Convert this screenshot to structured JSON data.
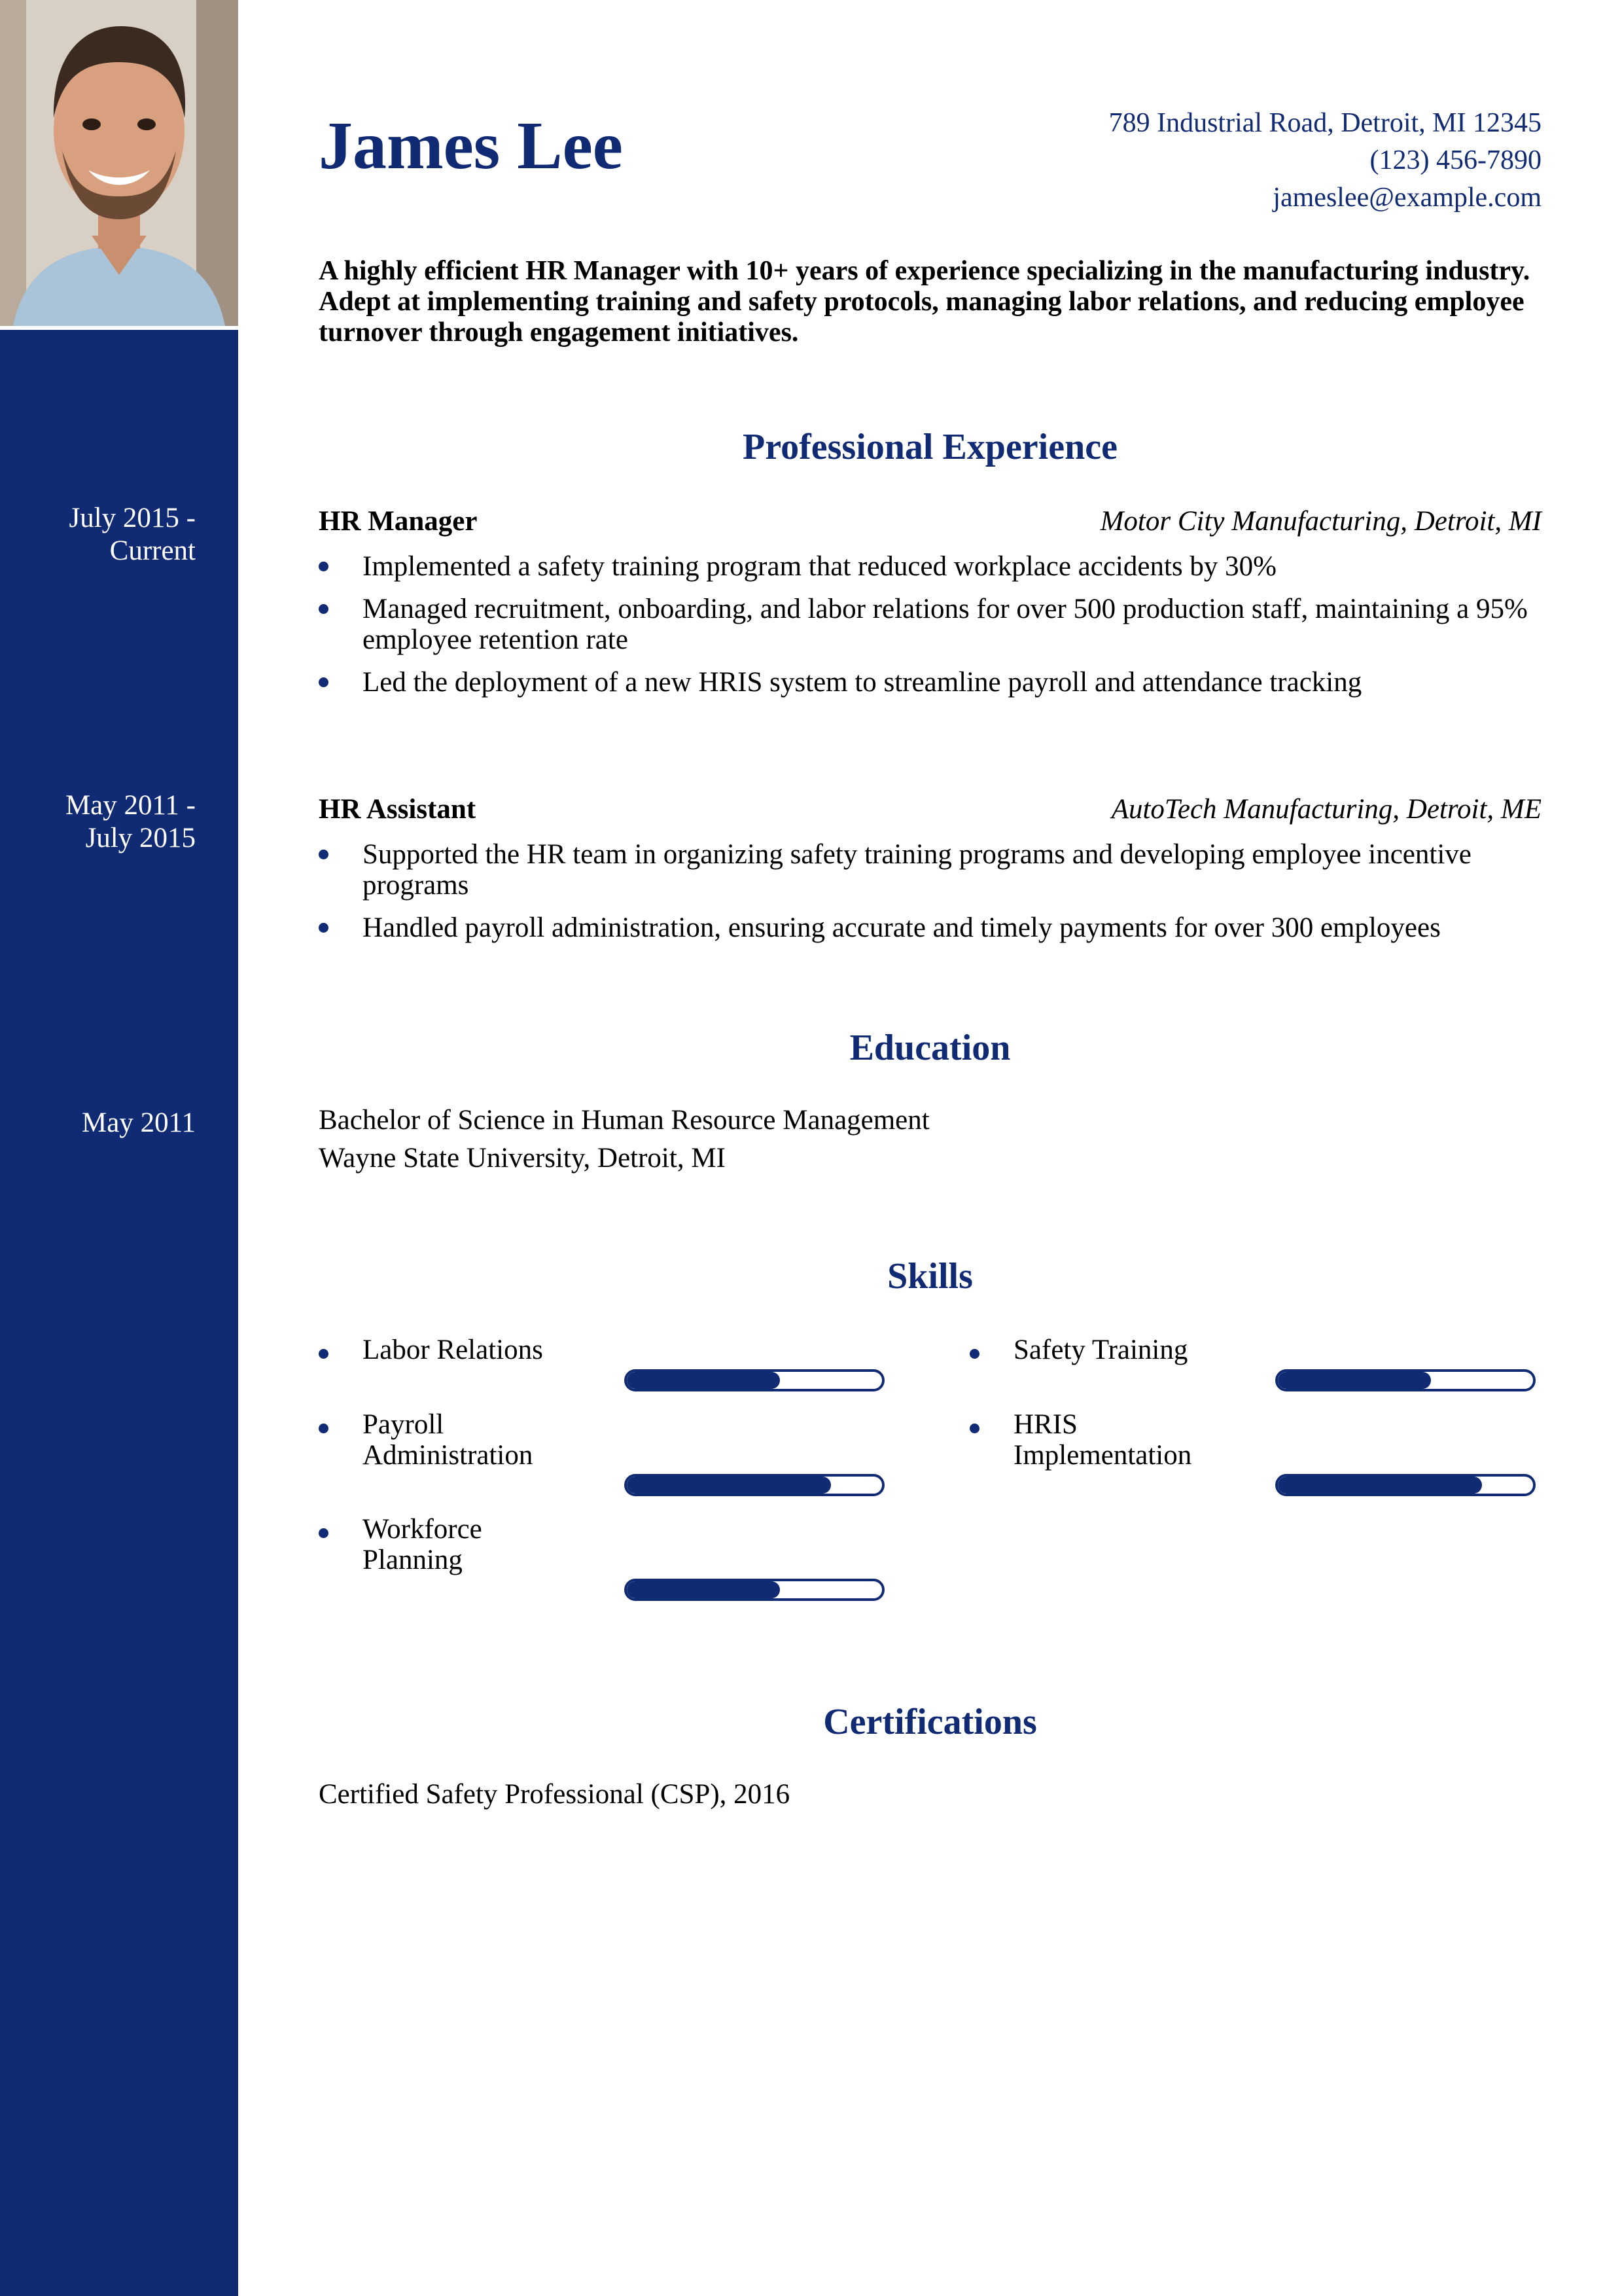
{
  "header": {
    "name": "James Lee",
    "address": "789 Industrial Road, Detroit, MI 12345",
    "phone": "(123) 456-7890",
    "email": "jameslee@example.com"
  },
  "summary": "A highly efficient HR Manager with 10+ years of experience specializing in the manufacturing industry. Adept at implementing training and safety protocols, managing labor relations, and reducing employee turnover through engagement initiatives.",
  "sections": {
    "experience": "Professional Experience",
    "education": "Education",
    "skills": "Skills",
    "certifications": "Certifications"
  },
  "experience": [
    {
      "dates_line1": "July 2015 -",
      "dates_line2": "Current",
      "title": "HR Manager",
      "company": "Motor City Manufacturing, Detroit, MI",
      "bullets": [
        "Implemented a safety training program that reduced workplace accidents by 30%",
        "Managed recruitment, onboarding, and labor relations for over 500 production staff, maintaining a 95% employee retention rate",
        "Led the deployment of a new HRIS system to streamline payroll and attendance tracking"
      ]
    },
    {
      "dates_line1": "May 2011 -",
      "dates_line2": "July 2015",
      "title": "HR Assistant",
      "company": "AutoTech Manufacturing, Detroit, ME",
      "bullets": [
        "Supported the HR team in organizing safety training programs and developing employee incentive programs",
        "Handled payroll administration, ensuring accurate and timely payments for over 300 employees"
      ]
    }
  ],
  "education": {
    "date": "May 2011",
    "degree": "Bachelor of Science in Human Resource Management",
    "school": "Wayne State University, Detroit, MI"
  },
  "skills": [
    {
      "line1": "Labor Relations",
      "line2": "",
      "level": 0.6
    },
    {
      "line1": "Safety Training",
      "line2": "",
      "level": 0.6
    },
    {
      "line1": "Payroll",
      "line2": "Administration",
      "level": 0.8
    },
    {
      "line1": "HRIS",
      "line2": "Implementation",
      "level": 0.8
    },
    {
      "line1": "Workforce",
      "line2": "Planning",
      "level": 0.6
    }
  ],
  "certifications": [
    "Certified Safety Professional (CSP), 2016"
  ],
  "colors": {
    "accent": "#102a73",
    "background": "#ffffff",
    "text": "#000000"
  }
}
